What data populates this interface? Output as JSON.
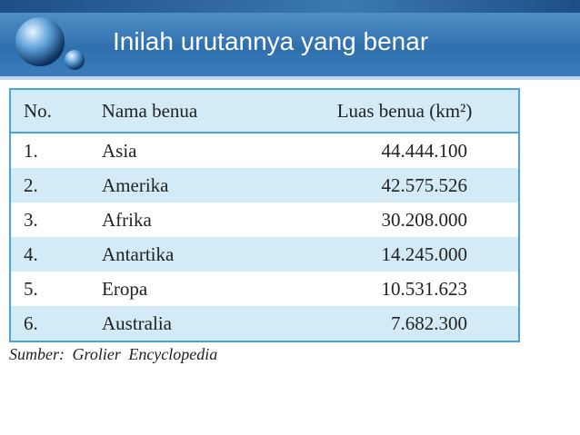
{
  "header": {
    "title": "Inilah urutannya yang benar"
  },
  "table": {
    "columns": [
      "No.",
      "Nama benua",
      "Luas benua (km²)"
    ],
    "rows": [
      [
        "1.",
        "Asia",
        "44.444.100"
      ],
      [
        "2.",
        "Amerika",
        "42.575.526"
      ],
      [
        "3.",
        "Afrika",
        "30.208.000"
      ],
      [
        "4.",
        "Antartika",
        "14.245.000"
      ],
      [
        "5.",
        "Eropa",
        "10.531.623"
      ],
      [
        "6.",
        "Australia",
        "7.682.300"
      ]
    ]
  },
  "source": "Sumber: Grolier Encyclopedia"
}
